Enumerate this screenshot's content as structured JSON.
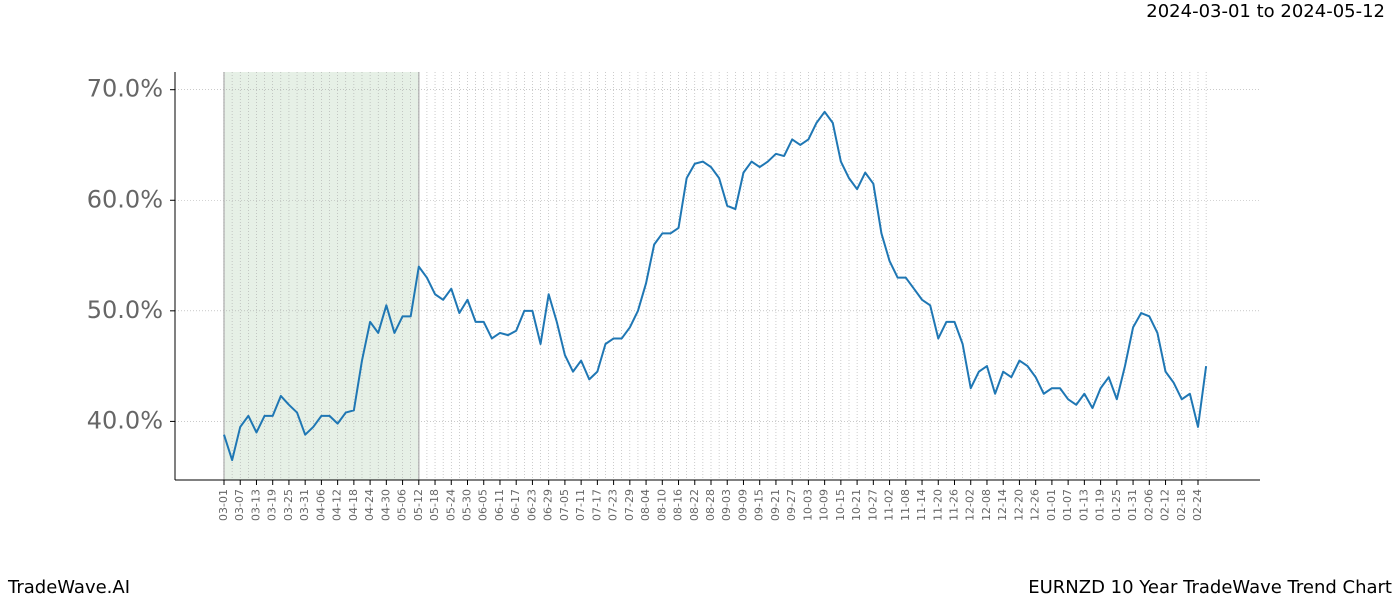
{
  "chart_data": {
    "type": "line",
    "title": "EURNZD 10 Year TradeWave Trend Chart",
    "subtitle": "2024-03-01 to 2024-05-12",
    "brand": "TradeWave.AI",
    "categories": [
      "03-01",
      null,
      "03-07",
      null,
      "03-13",
      null,
      "03-19",
      null,
      "03-25",
      null,
      "03-31",
      null,
      "04-06",
      null,
      "04-12",
      null,
      "04-18",
      null,
      "04-24",
      null,
      "04-30",
      null,
      "05-06",
      null,
      "05-12",
      null,
      "05-18",
      null,
      "05-24",
      null,
      "05-30",
      null,
      "06-05",
      null,
      "06-11",
      null,
      "06-17",
      null,
      "06-23",
      null,
      "06-29",
      null,
      "07-05",
      null,
      "07-11",
      null,
      "07-17",
      null,
      "07-23",
      null,
      "07-29",
      null,
      "08-04",
      null,
      "08-10",
      null,
      "08-16",
      null,
      "08-22",
      null,
      "08-28",
      null,
      "09-03",
      null,
      "09-09",
      null,
      "09-15",
      null,
      "09-21",
      null,
      "09-27",
      null,
      "10-03",
      null,
      "10-09",
      null,
      "10-15",
      null,
      "10-21",
      null,
      "10-27",
      null,
      "11-02",
      null,
      "11-08",
      null,
      "11-14",
      null,
      "11-20",
      null,
      "11-26",
      null,
      "12-02",
      null,
      "12-08",
      null,
      "12-14",
      null,
      "12-20",
      null,
      "12-26",
      null,
      "01-01",
      null,
      "01-07",
      null,
      "01-13",
      null,
      "01-19",
      null,
      "01-25",
      null,
      "01-31",
      null,
      "02-06",
      null,
      "02-12",
      null,
      "02-18",
      null,
      "02-24",
      null
    ],
    "series": [
      {
        "color": "#1f77b4",
        "values": [
          38.8,
          36.5,
          39.5,
          40.5,
          39,
          40.5,
          40.5,
          42.3,
          41.5,
          40.8,
          38.8,
          39.5,
          40.5,
          40.5,
          39.8,
          40.8,
          41,
          45.5,
          49,
          48,
          50.5,
          48,
          49.5,
          49.5,
          54,
          53,
          51.5,
          51,
          52,
          49.8,
          51,
          49,
          49,
          47.5,
          48,
          47.8,
          48.2,
          50,
          50,
          47,
          51.5,
          49,
          46,
          44.5,
          45.5,
          43.8,
          44.5,
          47,
          47.5,
          47.5,
          48.5,
          50,
          52.5,
          56,
          57,
          57,
          57.5,
          62,
          63.3,
          63.5,
          63,
          62,
          59.5,
          59.2,
          62.5,
          63.5,
          63,
          63.5,
          64.2,
          64,
          65.5,
          65,
          65.5,
          67,
          68,
          67,
          63.5,
          62,
          61,
          62.5,
          61.5,
          57,
          54.5,
          53,
          53,
          52,
          51,
          50.5,
          47.5,
          49,
          49,
          47,
          43,
          44.5,
          45,
          42.5,
          44.5,
          44,
          45.5,
          45,
          44,
          42.5,
          43,
          43,
          42,
          41.5,
          42.5,
          41.2,
          43,
          44,
          42,
          45,
          48.5,
          49.8,
          49.5,
          48,
          44.5,
          43.5,
          42,
          42.5,
          39.5,
          45
        ]
      }
    ],
    "ylim": [
      34.7,
      71.6
    ],
    "yticks": [
      {
        "value": 40,
        "label": "40.0%"
      },
      {
        "value": 50,
        "label": "50.0%"
      },
      {
        "value": 60,
        "label": "60.0%"
      },
      {
        "value": 70,
        "label": "70.0%"
      }
    ],
    "shade": [
      "03-01",
      "05-12"
    ],
    "grid": true
  }
}
